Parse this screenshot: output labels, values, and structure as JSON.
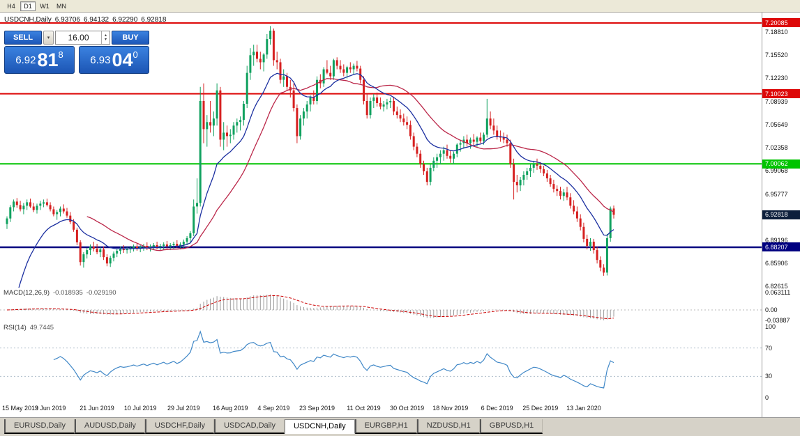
{
  "toolbar": {
    "timeframes": [
      {
        "label": "H4",
        "active": false
      },
      {
        "label": "D1",
        "active": true
      },
      {
        "label": "W1",
        "active": false
      },
      {
        "label": "MN",
        "active": false
      }
    ]
  },
  "chart_header": {
    "symbol": "USDCNH,Daily",
    "open": "6.93706",
    "high": "6.94132",
    "low": "6.92290",
    "close": "6.92818"
  },
  "trade_panel": {
    "sell_label": "SELL",
    "buy_label": "BUY",
    "volume": "16.00",
    "bid": {
      "big": "6.92",
      "pips": "81",
      "point": "8"
    },
    "ask": {
      "big": "6.93",
      "pips": "04",
      "point": "0"
    }
  },
  "indicators": {
    "macd": {
      "label": "MACD(12,26,9)",
      "value": "-0.018935",
      "signal_value": "-0.029190",
      "axis": [
        "0.063111",
        "0.00",
        "-0.03887"
      ]
    },
    "rsi": {
      "label": "RSI(14)",
      "value": "49.7445",
      "axis": [
        "100",
        "70",
        "30",
        "0"
      ]
    }
  },
  "tabs": [
    {
      "label": "EURUSD,Daily",
      "active": false
    },
    {
      "label": "AUDUSD,Daily",
      "active": false
    },
    {
      "label": "USDCHF,Daily",
      "active": false
    },
    {
      "label": "USDCAD,Daily",
      "active": false
    },
    {
      "label": "USDCNH,Daily",
      "active": true
    },
    {
      "label": "EURGBP,H1",
      "active": false
    },
    {
      "label": "NZDUSD,H1",
      "active": false
    },
    {
      "label": "GBPUSD,H1",
      "active": false
    }
  ],
  "chart_data": {
    "type": "candlestick",
    "symbol": "USDCNH",
    "timeframe": "Daily",
    "up_color": "#10a15f",
    "down_color": "#d62020",
    "y_ticks": [
      "7.18810",
      "7.15520",
      "7.12230",
      "7.08939",
      "7.05649",
      "7.02358",
      "6.99068",
      "6.95777",
      "6.89196",
      "6.85906",
      "6.82615"
    ],
    "levels": [
      {
        "label": "7.20085",
        "color": "#dd0808",
        "width": 2
      },
      {
        "label": "7.10023",
        "color": "#dd0808",
        "width": 2
      },
      {
        "label": "7.00062",
        "color": "#00c400",
        "width": 2
      },
      {
        "label": "6.88207",
        "color": "#000080",
        "width": 2.5
      }
    ],
    "current_price": {
      "label": "6.92818",
      "bg": "#0d1f3c"
    },
    "overlays": [
      {
        "name": "ma-red",
        "type": "sma",
        "period": 25,
        "color": "#bb2749"
      },
      {
        "name": "ma-blue",
        "type": "ema",
        "period": 14,
        "seed": 6.72,
        "color": "#1b2fa0"
      }
    ],
    "macd_params": {
      "fast": 12,
      "slow": 26,
      "signal": 9,
      "bar_color": "#9a9a9a",
      "signal_color": "#cc0000"
    },
    "rsi_params": {
      "period": 14,
      "color": "#3f87c7",
      "levels": [
        70,
        30
      ]
    },
    "x_labels": [
      {
        "text": "15 May 2019",
        "index": 0
      },
      {
        "text": "3 Jun 2019",
        "index": 13
      },
      {
        "text": "21 Jun 2019",
        "index": 27
      },
      {
        "text": "10 Jul 2019",
        "index": 40
      },
      {
        "text": "29 Jul 2019",
        "index": 53
      },
      {
        "text": "16 Aug 2019",
        "index": 67
      },
      {
        "text": "4 Sep 2019",
        "index": 80
      },
      {
        "text": "23 Sep 2019",
        "index": 93
      },
      {
        "text": "11 Oct 2019",
        "index": 107
      },
      {
        "text": "30 Oct 2019",
        "index": 120
      },
      {
        "text": "18 Nov 2019",
        "index": 133
      },
      {
        "text": "6 Dec 2019",
        "index": 147
      },
      {
        "text": "25 Dec 2019",
        "index": 160
      },
      {
        "text": "13 Jan 2020",
        "index": 173
      }
    ],
    "candles": [
      [
        6.915,
        6.926,
        6.908,
        6.923
      ],
      [
        6.923,
        6.942,
        6.918,
        6.939
      ],
      [
        6.939,
        6.95,
        6.933,
        6.947
      ],
      [
        6.947,
        6.952,
        6.938,
        6.942
      ],
      [
        6.942,
        6.948,
        6.933,
        6.936
      ],
      [
        6.936,
        6.945,
        6.929,
        6.941
      ],
      [
        6.941,
        6.95,
        6.935,
        6.946
      ],
      [
        6.946,
        6.951,
        6.938,
        6.94
      ],
      [
        6.94,
        6.945,
        6.932,
        6.935
      ],
      [
        6.935,
        6.944,
        6.93,
        6.941
      ],
      [
        6.941,
        6.948,
        6.935,
        6.944
      ],
      [
        6.944,
        6.95,
        6.939,
        6.946
      ],
      [
        6.946,
        6.951,
        6.94,
        6.942
      ],
      [
        6.942,
        6.946,
        6.933,
        6.936
      ],
      [
        6.936,
        6.94,
        6.926,
        6.929
      ],
      [
        6.929,
        6.935,
        6.921,
        6.932
      ],
      [
        6.932,
        6.94,
        6.926,
        6.937
      ],
      [
        6.937,
        6.943,
        6.93,
        6.933
      ],
      [
        6.933,
        6.938,
        6.924,
        6.927
      ],
      [
        6.927,
        6.932,
        6.915,
        6.918
      ],
      [
        6.918,
        6.922,
        6.904,
        6.907
      ],
      [
        6.907,
        6.91,
        6.885,
        6.889
      ],
      [
        6.889,
        6.892,
        6.856,
        6.861
      ],
      [
        6.861,
        6.875,
        6.853,
        6.872
      ],
      [
        6.872,
        6.881,
        6.866,
        6.878
      ],
      [
        6.878,
        6.886,
        6.871,
        6.883
      ],
      [
        6.883,
        6.89,
        6.876,
        6.88
      ],
      [
        6.88,
        6.887,
        6.872,
        6.875
      ],
      [
        6.875,
        6.882,
        6.868,
        6.879
      ],
      [
        6.879,
        6.883,
        6.864,
        6.868
      ],
      [
        6.868,
        6.872,
        6.855,
        6.859
      ],
      [
        6.859,
        6.87,
        6.854,
        6.867
      ],
      [
        6.867,
        6.876,
        6.862,
        6.873
      ],
      [
        6.873,
        6.88,
        6.868,
        6.877
      ],
      [
        6.877,
        6.883,
        6.872,
        6.88
      ],
      [
        6.88,
        6.885,
        6.874,
        6.878
      ],
      [
        6.878,
        6.882,
        6.873,
        6.879
      ],
      [
        6.879,
        6.884,
        6.874,
        6.881
      ],
      [
        6.881,
        6.886,
        6.876,
        6.883
      ],
      [
        6.883,
        6.887,
        6.877,
        6.88
      ],
      [
        6.88,
        6.885,
        6.875,
        6.882
      ],
      [
        6.882,
        6.887,
        6.877,
        6.884
      ],
      [
        6.884,
        6.889,
        6.878,
        6.881
      ],
      [
        6.881,
        6.886,
        6.876,
        6.883
      ],
      [
        6.883,
        6.888,
        6.878,
        6.885
      ],
      [
        6.885,
        6.89,
        6.879,
        6.882
      ],
      [
        6.882,
        6.887,
        6.877,
        6.884
      ],
      [
        6.884,
        6.889,
        6.879,
        6.886
      ],
      [
        6.886,
        6.891,
        6.88,
        6.883
      ],
      [
        6.883,
        6.888,
        6.878,
        6.885
      ],
      [
        6.885,
        6.89,
        6.88,
        6.887
      ],
      [
        6.887,
        6.892,
        6.881,
        6.884
      ],
      [
        6.884,
        6.889,
        6.879,
        6.886
      ],
      [
        6.886,
        6.893,
        6.881,
        6.89
      ],
      [
        6.89,
        6.898,
        6.885,
        6.895
      ],
      [
        6.895,
        6.905,
        6.89,
        6.902
      ],
      [
        6.902,
        6.95,
        6.898,
        6.94
      ],
      [
        6.94,
        6.98,
        6.93,
        6.945
      ],
      [
        6.945,
        7.11,
        6.94,
        7.09
      ],
      [
        7.09,
        7.115,
        7.03,
        7.05
      ],
      [
        7.05,
        7.07,
        7.025,
        7.06
      ],
      [
        7.06,
        7.09,
        7.045,
        7.055
      ],
      [
        7.055,
        7.075,
        7.04,
        7.065
      ],
      [
        7.065,
        7.115,
        7.055,
        7.105
      ],
      [
        7.105,
        7.11,
        7.025,
        7.035
      ],
      [
        7.035,
        7.06,
        7.02,
        7.045
      ],
      [
        7.045,
        7.055,
        7.025,
        7.04
      ],
      [
        7.04,
        7.05,
        7.03,
        7.042
      ],
      [
        7.042,
        7.06,
        7.035,
        7.055
      ],
      [
        7.055,
        7.065,
        7.045,
        7.06
      ],
      [
        7.06,
        7.068,
        7.048,
        7.063
      ],
      [
        7.063,
        7.09,
        7.055,
        7.086
      ],
      [
        7.086,
        7.14,
        7.08,
        7.13
      ],
      [
        7.13,
        7.165,
        7.12,
        7.155
      ],
      [
        7.155,
        7.17,
        7.14,
        7.16
      ],
      [
        7.16,
        7.17,
        7.145,
        7.15
      ],
      [
        7.15,
        7.16,
        7.135,
        7.145
      ],
      [
        7.145,
        7.158,
        7.132,
        7.156
      ],
      [
        7.156,
        7.185,
        7.15,
        7.178
      ],
      [
        7.178,
        7.1965,
        7.17,
        7.19
      ],
      [
        7.19,
        7.193,
        7.14,
        7.148
      ],
      [
        7.148,
        7.16,
        7.135,
        7.145
      ],
      [
        7.145,
        7.15,
        7.115,
        7.12
      ],
      [
        7.12,
        7.135,
        7.11,
        7.125
      ],
      [
        7.125,
        7.13,
        7.105,
        7.11
      ],
      [
        7.11,
        7.12,
        7.095,
        7.105
      ],
      [
        7.105,
        7.115,
        7.075,
        7.08
      ],
      [
        7.08,
        7.085,
        7.03,
        7.04
      ],
      [
        7.04,
        7.07,
        7.035,
        7.065
      ],
      [
        7.065,
        7.08,
        7.055,
        7.075
      ],
      [
        7.075,
        7.09,
        7.065,
        7.085
      ],
      [
        7.085,
        7.098,
        7.075,
        7.095
      ],
      [
        7.095,
        7.105,
        7.085,
        7.09
      ],
      [
        7.09,
        7.125,
        7.085,
        7.12
      ],
      [
        7.12,
        7.128,
        7.108,
        7.115
      ],
      [
        7.115,
        7.138,
        7.11,
        7.135
      ],
      [
        7.135,
        7.148,
        7.128,
        7.13
      ],
      [
        7.13,
        7.14,
        7.12,
        7.125
      ],
      [
        7.125,
        7.15,
        7.12,
        7.148
      ],
      [
        7.148,
        7.152,
        7.135,
        7.14
      ],
      [
        7.14,
        7.148,
        7.13,
        7.135
      ],
      [
        7.135,
        7.142,
        7.125,
        7.13
      ],
      [
        7.13,
        7.14,
        7.122,
        7.138
      ],
      [
        7.138,
        7.145,
        7.13,
        7.135
      ],
      [
        7.135,
        7.143,
        7.128,
        7.14
      ],
      [
        7.14,
        7.147,
        7.132,
        7.136
      ],
      [
        7.136,
        7.14,
        7.115,
        7.12
      ],
      [
        7.12,
        7.125,
        7.085,
        7.09
      ],
      [
        7.09,
        7.1,
        7.065,
        7.07
      ],
      [
        7.07,
        7.095,
        7.065,
        7.09
      ],
      [
        7.09,
        7.1,
        7.08,
        7.095
      ],
      [
        7.095,
        7.102,
        7.082,
        7.087
      ],
      [
        7.087,
        7.095,
        7.078,
        7.082
      ],
      [
        7.082,
        7.09,
        7.075,
        7.085
      ],
      [
        7.085,
        7.093,
        7.078,
        7.088
      ],
      [
        7.088,
        7.095,
        7.08,
        7.09
      ],
      [
        7.09,
        7.096,
        7.07,
        7.075
      ],
      [
        7.075,
        7.082,
        7.065,
        7.07
      ],
      [
        7.07,
        7.078,
        7.06,
        7.065
      ],
      [
        7.065,
        7.072,
        7.055,
        7.06
      ],
      [
        7.06,
        7.068,
        7.05,
        7.056
      ],
      [
        7.056,
        7.062,
        7.035,
        7.04
      ],
      [
        7.04,
        7.045,
        7.02,
        7.025
      ],
      [
        7.025,
        7.03,
        7.01,
        7.015
      ],
      [
        7.015,
        7.02,
        6.995,
        7.0
      ],
      [
        7.0,
        7.005,
        6.985,
        6.99
      ],
      [
        6.99,
        6.995,
        6.97,
        6.975
      ],
      [
        6.975,
        7.0,
        6.97,
        6.995
      ],
      [
        6.995,
        7.01,
        6.99,
        7.005
      ],
      [
        7.005,
        7.015,
        6.995,
        7.01
      ],
      [
        7.01,
        7.02,
        7.0,
        7.015
      ],
      [
        7.015,
        7.025,
        7.005,
        7.02
      ],
      [
        7.02,
        7.028,
        7.008,
        7.012
      ],
      [
        7.012,
        7.02,
        7.002,
        7.008
      ],
      [
        7.008,
        7.018,
        7.0,
        7.015
      ],
      [
        7.015,
        7.03,
        7.01,
        7.028
      ],
      [
        7.028,
        7.035,
        7.018,
        7.03
      ],
      [
        7.03,
        7.04,
        7.022,
        7.035
      ],
      [
        7.035,
        7.042,
        7.025,
        7.03
      ],
      [
        7.03,
        7.038,
        7.022,
        7.035
      ],
      [
        7.035,
        7.043,
        7.027,
        7.032
      ],
      [
        7.032,
        7.04,
        7.025,
        7.038
      ],
      [
        7.038,
        7.045,
        7.03,
        7.033
      ],
      [
        7.033,
        7.045,
        7.028,
        7.042
      ],
      [
        7.042,
        7.093,
        7.038,
        7.065
      ],
      [
        7.065,
        7.075,
        7.05,
        7.055
      ],
      [
        7.055,
        7.065,
        7.042,
        7.048
      ],
      [
        7.048,
        7.055,
        7.035,
        7.04
      ],
      [
        7.04,
        7.048,
        7.032,
        7.038
      ],
      [
        7.038,
        7.045,
        7.03,
        7.035
      ],
      [
        7.035,
        7.042,
        7.025,
        7.03
      ],
      [
        7.03,
        7.035,
        6.995,
        7.0
      ],
      [
        7.0,
        7.008,
        6.95,
        6.975
      ],
      [
        6.975,
        6.985,
        6.96,
        6.97
      ],
      [
        6.97,
        6.982,
        6.962,
        6.978
      ],
      [
        6.978,
        6.99,
        6.97,
        6.985
      ],
      [
        6.985,
        6.995,
        6.978,
        6.99
      ],
      [
        6.99,
        7.0,
        6.982,
        6.995
      ],
      [
        6.995,
        7.005,
        6.988,
        7.0
      ],
      [
        7.0,
        7.008,
        6.992,
        6.998
      ],
      [
        6.998,
        7.003,
        6.988,
        6.993
      ],
      [
        6.993,
        6.998,
        6.983,
        6.987
      ],
      [
        6.987,
        6.992,
        6.975,
        6.98
      ],
      [
        6.98,
        6.985,
        6.968,
        6.972
      ],
      [
        6.972,
        6.978,
        6.96,
        6.965
      ],
      [
        6.965,
        6.97,
        6.955,
        6.962
      ],
      [
        6.962,
        6.968,
        6.95,
        6.955
      ],
      [
        6.955,
        6.965,
        6.948,
        6.96
      ],
      [
        6.96,
        6.968,
        6.949,
        6.953
      ],
      [
        6.953,
        6.959,
        6.937,
        6.941
      ],
      [
        6.941,
        6.949,
        6.929,
        6.933
      ],
      [
        6.933,
        6.94,
        6.918,
        6.923
      ],
      [
        6.923,
        6.929,
        6.906,
        6.911
      ],
      [
        6.911,
        6.917,
        6.889,
        6.894
      ],
      [
        6.894,
        6.9,
        6.879,
        6.884
      ],
      [
        6.884,
        6.895,
        6.877,
        6.89
      ],
      [
        6.89,
        6.894,
        6.873,
        6.878
      ],
      [
        6.878,
        6.883,
        6.859,
        6.864
      ],
      [
        6.864,
        6.869,
        6.848,
        6.853
      ],
      [
        6.853,
        6.858,
        6.8415,
        6.846
      ],
      [
        6.846,
        6.901,
        6.8419,
        6.895
      ],
      [
        6.895,
        6.94,
        6.89,
        6.9371
      ],
      [
        6.93706,
        6.94132,
        6.9229,
        6.92818
      ]
    ]
  }
}
